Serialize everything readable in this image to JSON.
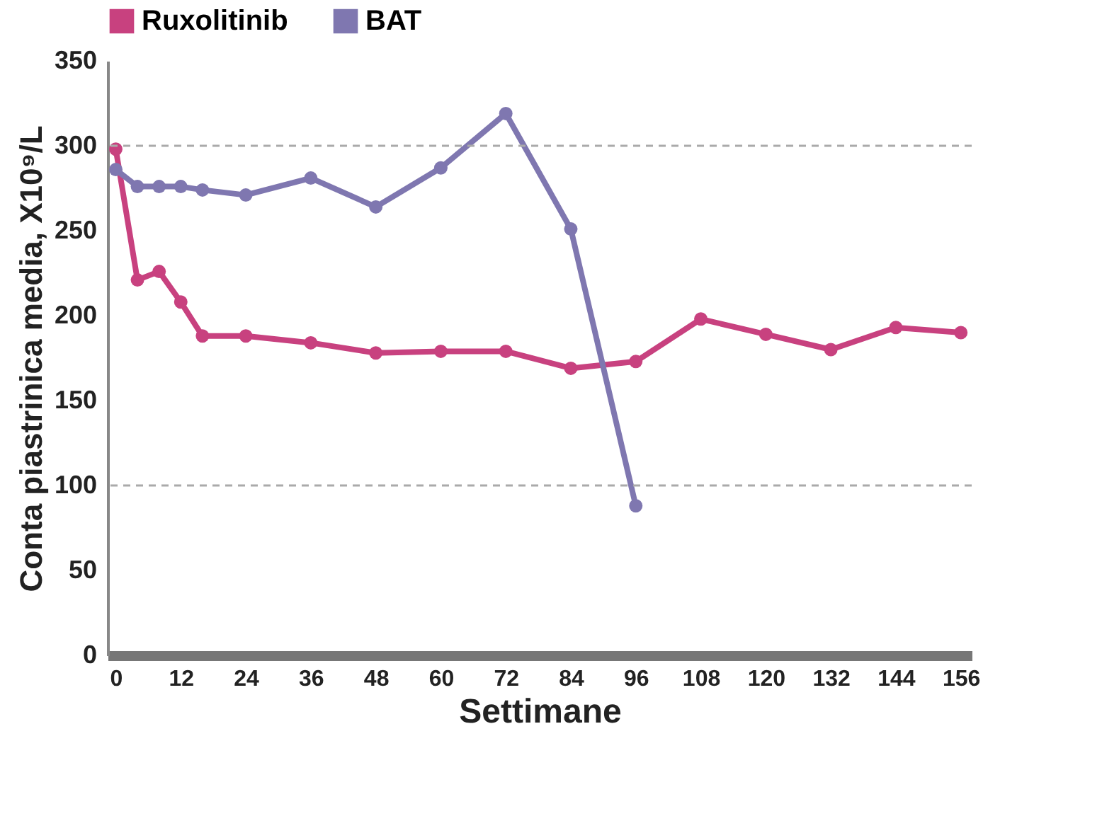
{
  "chart_data": {
    "type": "line",
    "xlabel": "Settimane",
    "ylabel": "Conta piastrinica media, X10⁹/L",
    "xlim": [
      -1.5,
      158
    ],
    "xticks": [
      0,
      12,
      24,
      36,
      48,
      60,
      72,
      84,
      96,
      108,
      120,
      132,
      144,
      156
    ],
    "ylim": [
      0,
      350
    ],
    "yticks": [
      0,
      50,
      100,
      150,
      200,
      250,
      300,
      350
    ],
    "series": [
      {
        "name": "Ruxolitinib",
        "color": "#c8417f",
        "x": [
          0,
          4,
          8,
          12,
          16,
          24,
          36,
          48,
          60,
          72,
          84,
          96,
          108,
          120,
          132,
          144,
          156
        ],
        "values": [
          298,
          221,
          226,
          208,
          188,
          188,
          184,
          178,
          179,
          179,
          169,
          173,
          198,
          189,
          180,
          193,
          190
        ]
      },
      {
        "name": "BAT",
        "color": "#7f77b0",
        "x": [
          0,
          4,
          8,
          12,
          16,
          24,
          36,
          48,
          60,
          72,
          84,
          96
        ],
        "values": [
          286,
          276,
          276,
          276,
          274,
          271,
          281,
          264,
          287,
          319,
          251,
          88
        ]
      }
    ],
    "ref_lines": [
      {
        "axis": "y",
        "value": 100,
        "color": "#aaaaaa",
        "line_style": "dashed"
      },
      {
        "axis": "y",
        "value": 300,
        "color": "#aaaaaa",
        "line_style": "dashed"
      }
    ],
    "grid": false,
    "legend": "top left",
    "marker": "circle",
    "line_style": "solid"
  }
}
